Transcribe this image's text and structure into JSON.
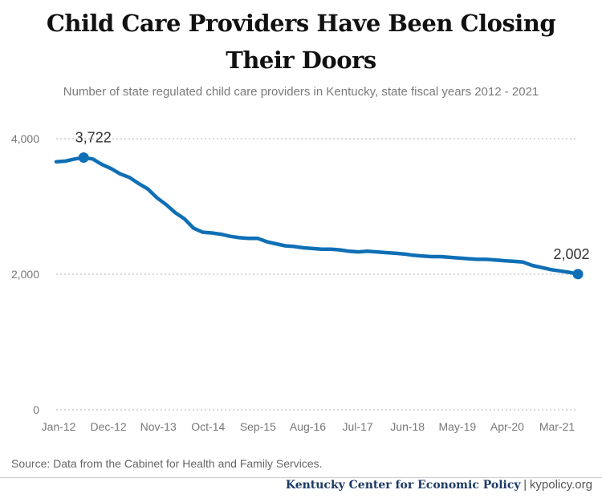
{
  "header": {
    "title_line1": "Child Care Providers Have Been Closing",
    "title_line2": "Their Doors",
    "subtitle": "Number of state regulated child care providers in Kentucky, state fiscal years 2012 - 2021"
  },
  "footer": {
    "source": "Source: Data from the Cabinet for Health and Family Services.",
    "org": "Kentucky Center for Economic Policy",
    "separator": "|",
    "site": "kypolicy.org"
  },
  "colors": {
    "line": "#0f6fb5",
    "grid": "#cccccc",
    "text": "#777777"
  },
  "chart_data": {
    "type": "line",
    "title": "Child Care Providers Have Been Closing Their Doors",
    "subtitle": "Number of state regulated child care providers in Kentucky, state fiscal years 2012 - 2021",
    "xlabel": "",
    "ylabel": "",
    "ylim": [
      0,
      4000
    ],
    "yticks": [
      0,
      2000,
      4000
    ],
    "ytick_labels": [
      "0",
      "2,000",
      "4,000"
    ],
    "xtick_labels": [
      "Jan-12",
      "Dec-12",
      "Nov-13",
      "Oct-14",
      "Sep-15",
      "Aug-16",
      "Jul-17",
      "Jun-18",
      "May-19",
      "Apr-20",
      "Mar-21"
    ],
    "grid": "horizontal dotted",
    "x": [
      "Jan-12",
      "Mar-12",
      "May-12",
      "Jul-12",
      "Sep-12",
      "Nov-12",
      "Jan-13",
      "Mar-13",
      "May-13",
      "Jul-13",
      "Sep-13",
      "Nov-13",
      "Jan-14",
      "Mar-14",
      "May-14",
      "Jul-14",
      "Sep-14",
      "Nov-14",
      "Jan-15",
      "Mar-15",
      "May-15",
      "Jul-15",
      "Sep-15",
      "Nov-15",
      "Jan-16",
      "Mar-16",
      "May-16",
      "Jul-16",
      "Sep-16",
      "Nov-16",
      "Jan-17",
      "Mar-17",
      "May-17",
      "Jul-17",
      "Sep-17",
      "Nov-17",
      "Jan-18",
      "Mar-18",
      "May-18",
      "Jul-18",
      "Sep-18",
      "Nov-18",
      "Jan-19",
      "Mar-19",
      "May-19",
      "Jul-19",
      "Sep-19",
      "Nov-19",
      "Jan-20",
      "Mar-20",
      "May-20",
      "Jul-20",
      "Sep-20",
      "Nov-20",
      "Jan-21",
      "Mar-21",
      "May-21",
      "Jun-21"
    ],
    "series": [
      {
        "values": [
          3660,
          3670,
          3700,
          3722,
          3700,
          3620,
          3560,
          3480,
          3430,
          3340,
          3260,
          3130,
          3030,
          2910,
          2820,
          2680,
          2620,
          2610,
          2590,
          2560,
          2540,
          2530,
          2530,
          2480,
          2450,
          2420,
          2410,
          2390,
          2380,
          2370,
          2370,
          2360,
          2340,
          2330,
          2340,
          2330,
          2320,
          2310,
          2300,
          2280,
          2270,
          2260,
          2260,
          2250,
          2240,
          2230,
          2220,
          2220,
          2210,
          2200,
          2190,
          2180,
          2130,
          2100,
          2070,
          2050,
          2030,
          2002
        ]
      }
    ],
    "annotations": [
      {
        "x": "Jul-12",
        "y": 3722,
        "label": "3,722"
      },
      {
        "x": "Jun-21",
        "y": 2002,
        "label": "2,002"
      }
    ]
  }
}
